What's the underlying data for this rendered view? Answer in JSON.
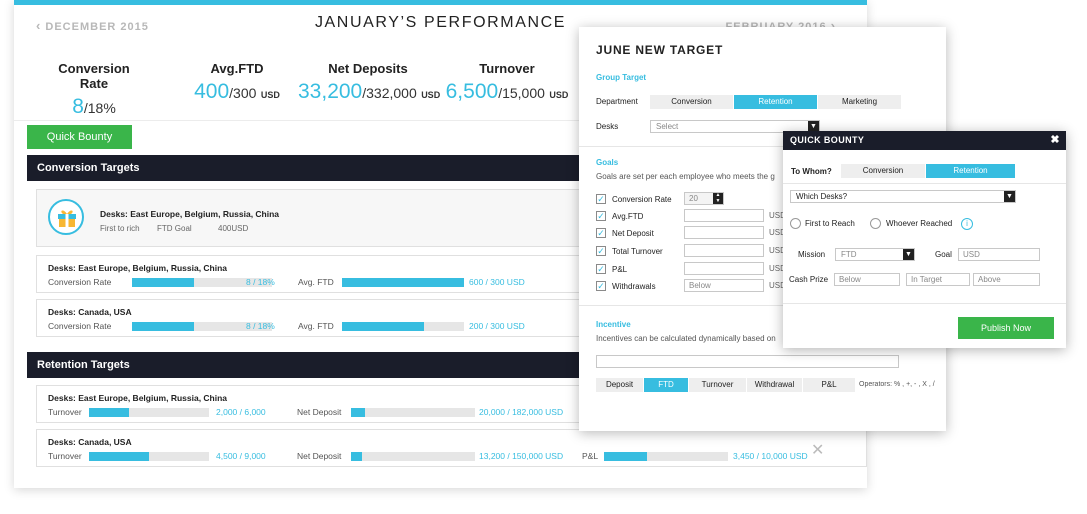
{
  "nav": {
    "prev_label": "DECEMBER 2015",
    "title": "JANUARY’S PERFORMANCE",
    "next_label": "FEBRUARY 2016"
  },
  "stats": [
    {
      "label": "Conversion Rate",
      "big": "8",
      "rest": "/18%",
      "unit": ""
    },
    {
      "label": "Avg.FTD",
      "big": "400",
      "rest": "/300",
      "unit": "USD"
    },
    {
      "label": "Net Deposits",
      "big": "33,200",
      "rest": "/332,000",
      "unit": "USD"
    },
    {
      "label": "Turnover",
      "big": "6,500",
      "rest": "/15,000",
      "unit": "USD"
    }
  ],
  "quick_bounty_label": "Quick Bounty",
  "conversion_section": {
    "title": "Conversion Targets",
    "bounty_card": {
      "desks": "Desks: East Europe, Belgium, Russia, China",
      "meta": [
        "First to rich",
        "FTD Goal",
        "400USD"
      ]
    },
    "rows": [
      {
        "desks": "Desks: East Europe, Belgium, Russia, China",
        "m1_label": "Conversion Rate",
        "m1_value": "8 / 18%",
        "m1_progress": 0.44,
        "m2_label": "Avg. FTD",
        "m2_value": "600 / 300 USD",
        "m2_progress": 1.0
      },
      {
        "desks": "Desks: Canada, USA",
        "m1_label": "Conversion Rate",
        "m1_value": "8 / 18%",
        "m1_progress": 0.44,
        "m2_label": "Avg. FTD",
        "m2_value": "200 / 300 USD",
        "m2_progress": 0.67
      }
    ]
  },
  "retention_section": {
    "title": "Retention Targets",
    "rows": [
      {
        "desks": "Desks: East Europe, Belgium, Russia, China",
        "m1_label": "Turnover",
        "m1_value": "2,000 / 6,000",
        "m1_progress": 0.33,
        "m2_label": "Net Deposit",
        "m2_value": "20,000 / 182,000 USD",
        "m2_progress": 0.11
      },
      {
        "desks": "Desks: Canada, USA",
        "m1_label": "Turnover",
        "m1_value": "4,500 / 9,000",
        "m1_progress": 0.5,
        "m2_label": "Net Deposit",
        "m2_value": "13,200 / 150,000 USD",
        "m2_progress": 0.09,
        "m3_label": "P&L",
        "m3_value": "3,450 / 10,000 USD",
        "m3_progress": 0.35,
        "close": "✕"
      }
    ]
  },
  "june_modal": {
    "title": "JUNE NEW TARGET",
    "group_target": "Group Target",
    "department_label": "Department",
    "departments": [
      "Conversion",
      "Retention",
      "Marketing"
    ],
    "active_department": "Retention",
    "desks_label": "Desks",
    "desks_placeholder": "Select",
    "goals_title": "Goals",
    "goals_desc": "Goals are set per each employee who meets the g",
    "goals": [
      {
        "name": "Conversion Rate",
        "value": "20",
        "kind": "stepper",
        "suffix": ""
      },
      {
        "name": "Avg.FTD",
        "value": "",
        "kind": "input",
        "suffix": "USD"
      },
      {
        "name": "Net Deposit",
        "value": "",
        "kind": "input",
        "suffix": "USD"
      },
      {
        "name": "Total Turnover",
        "value": "",
        "kind": "input",
        "suffix": "USD"
      },
      {
        "name": "P&L",
        "value": "",
        "kind": "input",
        "suffix": "USD"
      },
      {
        "name": "Withdrawals",
        "value": "Below",
        "kind": "input",
        "suffix": "USD"
      }
    ],
    "incentive_title": "Incentive",
    "incentive_desc": "Incentives can be calculated dynamically based on",
    "incentive_tabs": [
      "Deposit",
      "FTD",
      "Turnover",
      "Withdrawal",
      "P&L"
    ],
    "active_incentive": "FTD",
    "operators": "Operators: % , +, - , X , /"
  },
  "quick_bounty_modal": {
    "title": "QUICK BOUNTY",
    "close": "✖",
    "to_whom_label": "To Whom?",
    "to_whom_options": [
      "Conversion",
      "Retention"
    ],
    "active_to_whom": "Retention",
    "desks_select": "Which Desks?",
    "radio_options": [
      "First to Reach",
      "Whoever Reached"
    ],
    "info_icon_glyph": "i",
    "mission_label": "Mission",
    "mission_value": "FTD",
    "goal_label": "Goal",
    "goal_placeholder": "USD",
    "cash_prize_label": "Cash Prize",
    "cash_prize_fields": [
      "Below",
      "In Target",
      "Above"
    ],
    "publish_label": "Publish Now"
  },
  "colors": {
    "accent": "#37bde0",
    "green": "#3ab54a",
    "dark_bar": "#1a1d2a"
  }
}
